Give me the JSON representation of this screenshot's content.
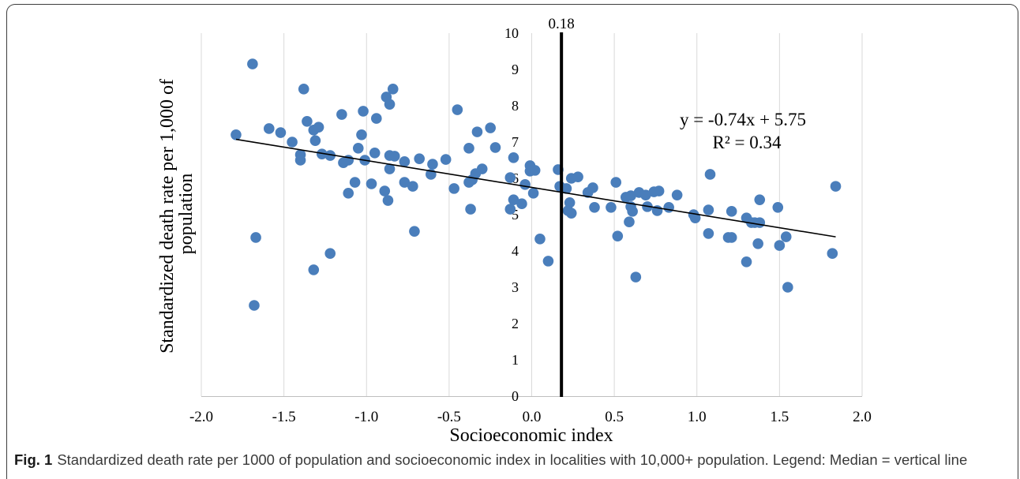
{
  "chart_data": {
    "type": "scatter",
    "xlabel": "Socioeconomic index",
    "ylabel": [
      "Standardized death rate per 1,000 of",
      "population"
    ],
    "xlim": [
      -2.0,
      2.0
    ],
    "ylim": [
      0,
      10
    ],
    "x_tick_labels": [
      "-2.0",
      "-1.5",
      "-1.0",
      "-0.5",
      "0.0",
      "0.5",
      "1.0",
      "1.5",
      "2.0"
    ],
    "y_tick_labels": [
      "0",
      "1",
      "2",
      "3",
      "4",
      "5",
      "6",
      "7",
      "8",
      "9",
      "10"
    ],
    "grid": {
      "vertical": true,
      "horizontal": false
    },
    "series": [
      {
        "x": [
          -1.79,
          -1.69,
          -1.68,
          -1.67,
          -1.59,
          -1.52,
          -1.45,
          -1.4,
          -1.4,
          -1.38,
          -1.36,
          -1.32,
          -1.31,
          -1.29,
          -1.32,
          -1.27,
          -1.22,
          -1.22,
          -1.15,
          -1.14,
          -1.11,
          -1.11,
          -1.07,
          -1.05,
          -1.03,
          -1.02,
          -1.01,
          -0.97,
          -0.95,
          -0.94,
          -0.89,
          -0.87,
          -0.88,
          -0.86,
          -0.86,
          -0.83,
          -0.86,
          -0.84,
          -0.77,
          -0.77,
          -0.72,
          -0.71,
          -0.68,
          -0.61,
          -0.6,
          -0.52,
          -0.47,
          -0.45,
          -0.38,
          -0.38,
          -0.37,
          -0.36,
          -0.34,
          -0.33,
          -0.3,
          -0.25,
          -0.22,
          -0.13,
          -0.13,
          -0.11,
          -0.11,
          -0.06,
          -0.04,
          -0.01,
          -0.01,
          0.01,
          0.02,
          0.05,
          0.1,
          0.16,
          0.17,
          0.21,
          0.22,
          0.23,
          0.24,
          0.24,
          0.28,
          0.34,
          0.37,
          0.38,
          0.48,
          0.51,
          0.52,
          0.57,
          0.59,
          0.6,
          0.6,
          0.61,
          0.63,
          0.65,
          0.69,
          0.7,
          0.74,
          0.76,
          0.77,
          0.83,
          0.88,
          0.98,
          0.99,
          1.07,
          1.07,
          1.08,
          1.19,
          1.21,
          1.21,
          1.3,
          1.3,
          1.33,
          1.35,
          1.37,
          1.38,
          1.38,
          1.49,
          1.5,
          1.54,
          1.55,
          1.82,
          1.84
        ],
        "y": [
          7.2,
          9.15,
          2.5,
          4.37,
          7.37,
          7.26,
          7.0,
          6.65,
          6.5,
          8.46,
          7.57,
          7.33,
          7.04,
          7.41,
          3.48,
          6.67,
          6.63,
          3.93,
          7.76,
          6.43,
          6.5,
          5.59,
          5.89,
          6.83,
          7.2,
          7.85,
          6.5,
          5.85,
          6.7,
          7.65,
          5.65,
          5.39,
          8.24,
          8.04,
          6.63,
          6.61,
          6.26,
          8.46,
          6.46,
          5.89,
          5.78,
          4.54,
          6.54,
          6.11,
          6.39,
          6.52,
          5.72,
          7.89,
          6.83,
          5.89,
          5.15,
          5.96,
          6.13,
          7.28,
          6.26,
          7.39,
          6.85,
          6.02,
          5.15,
          6.57,
          5.41,
          5.3,
          5.83,
          6.35,
          6.2,
          5.59,
          6.22,
          4.33,
          3.72,
          6.24,
          5.78,
          5.72,
          5.11,
          5.33,
          6.0,
          5.04,
          6.04,
          5.61,
          5.74,
          5.2,
          5.2,
          5.89,
          4.41,
          5.48,
          4.8,
          5.52,
          5.22,
          5.09,
          3.28,
          5.61,
          5.54,
          5.22,
          5.63,
          5.11,
          5.65,
          5.2,
          5.54,
          5.0,
          4.91,
          5.13,
          4.48,
          6.11,
          4.37,
          4.37,
          5.09,
          3.7,
          4.91,
          4.78,
          4.78,
          4.2,
          4.78,
          5.41,
          5.2,
          4.15,
          4.39,
          3.0,
          3.93,
          5.78
        ]
      }
    ],
    "trendline": {
      "type": "linear",
      "slope": -0.74,
      "intercept": 5.75,
      "r_squared": 0.34,
      "x_range": [
        -1.79,
        1.84
      ],
      "equation_label": "y = -0.74x + 5.75",
      "r_squared_label": "R² = 0.34"
    },
    "reference_line": {
      "orientation": "vertical",
      "x": 0.18,
      "label": "0.18"
    },
    "colors": {
      "points": "#4a7ebb",
      "trendline": "#000000",
      "reference_line": "#000000",
      "grid": "#d9d9d9",
      "axis": "#bfbfbf"
    }
  },
  "caption": {
    "label": "Fig. 1",
    "text": "Standardized death rate per 1000 of population and socioeconomic index in localities with 10,000+ population. Legend: Median = vertical line"
  }
}
